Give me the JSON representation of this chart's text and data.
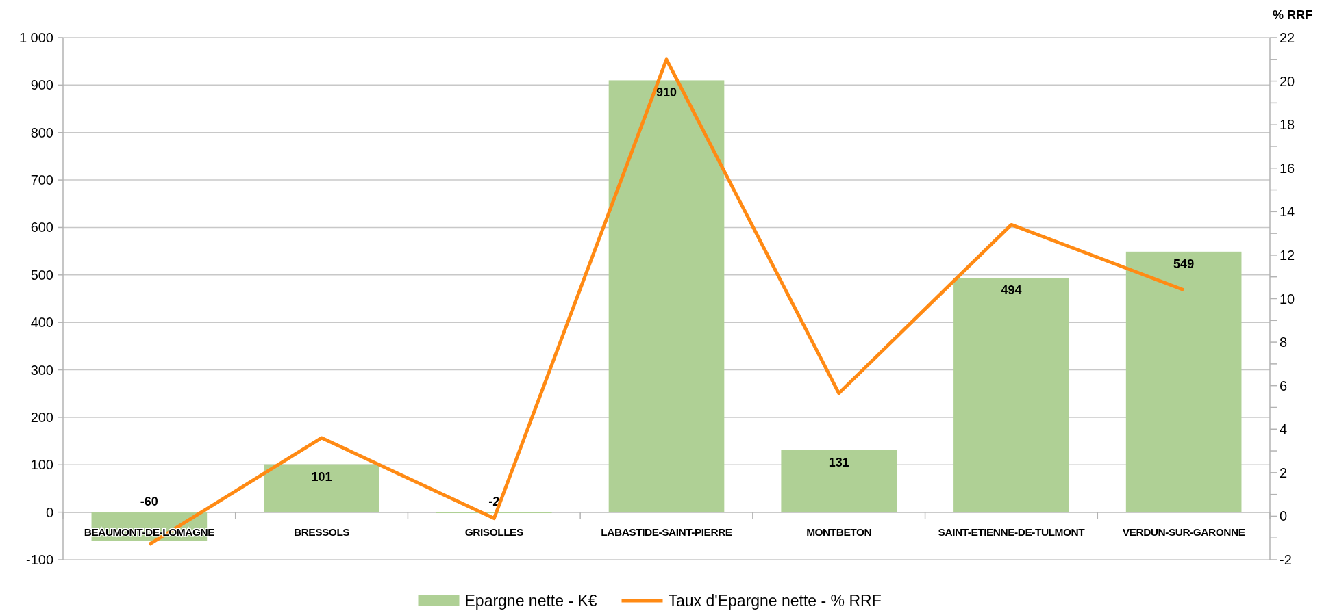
{
  "chart_data": {
    "type": "bar",
    "categories": [
      "BEAUMONT-DE-LOMAGNE",
      "BRESSOLS",
      "GRISOLLES",
      "LABASTIDE-SAINT-PIERRE",
      "MONTBETON",
      "SAINT-ETIENNE-DE-TULMONT",
      "VERDUN-SUR-GARONNE"
    ],
    "series": [
      {
        "name": "Epargne nette - K€",
        "color": "#afd095",
        "values": [
          -60,
          101,
          -2,
          910,
          131,
          494,
          549
        ],
        "value_labels": [
          "-60",
          "101",
          "-2",
          "910",
          "131",
          "494",
          "549"
        ]
      },
      {
        "name": "Taux d'Epargne nette - % RRF",
        "type": "line",
        "axis": "y2",
        "color": "#ff8a14",
        "values": [
          -1.3,
          3.6,
          -0.1,
          21.0,
          5.65,
          13.4,
          10.4
        ]
      }
    ],
    "ylim": [
      -100,
      1000
    ],
    "yticks": [
      -100,
      0,
      100,
      200,
      300,
      400,
      500,
      600,
      700,
      800,
      900,
      {
        "value": 1000,
        "label": "1 000"
      }
    ],
    "y2label": "% RRF",
    "y2lim": [
      -2,
      22
    ],
    "y2ticks": [
      -2,
      {
        "value": -1,
        "label": null
      },
      0,
      {
        "value": 1,
        "label": null
      },
      2,
      {
        "value": 3,
        "label": null
      },
      4,
      {
        "value": 5,
        "label": null
      },
      6,
      {
        "value": 7,
        "label": null
      },
      8,
      {
        "value": 9,
        "label": null
      },
      10,
      {
        "value": 11,
        "label": null
      },
      12,
      {
        "value": 13,
        "label": null
      },
      14,
      {
        "value": 15,
        "label": null
      },
      16,
      {
        "value": 17,
        "label": null
      },
      18,
      {
        "value": 19,
        "label": null
      },
      20,
      {
        "value": 21,
        "label": null
      },
      22
    ],
    "grid": "y",
    "legend": "bottom",
    "marker": "none",
    "line_style": "solid"
  }
}
